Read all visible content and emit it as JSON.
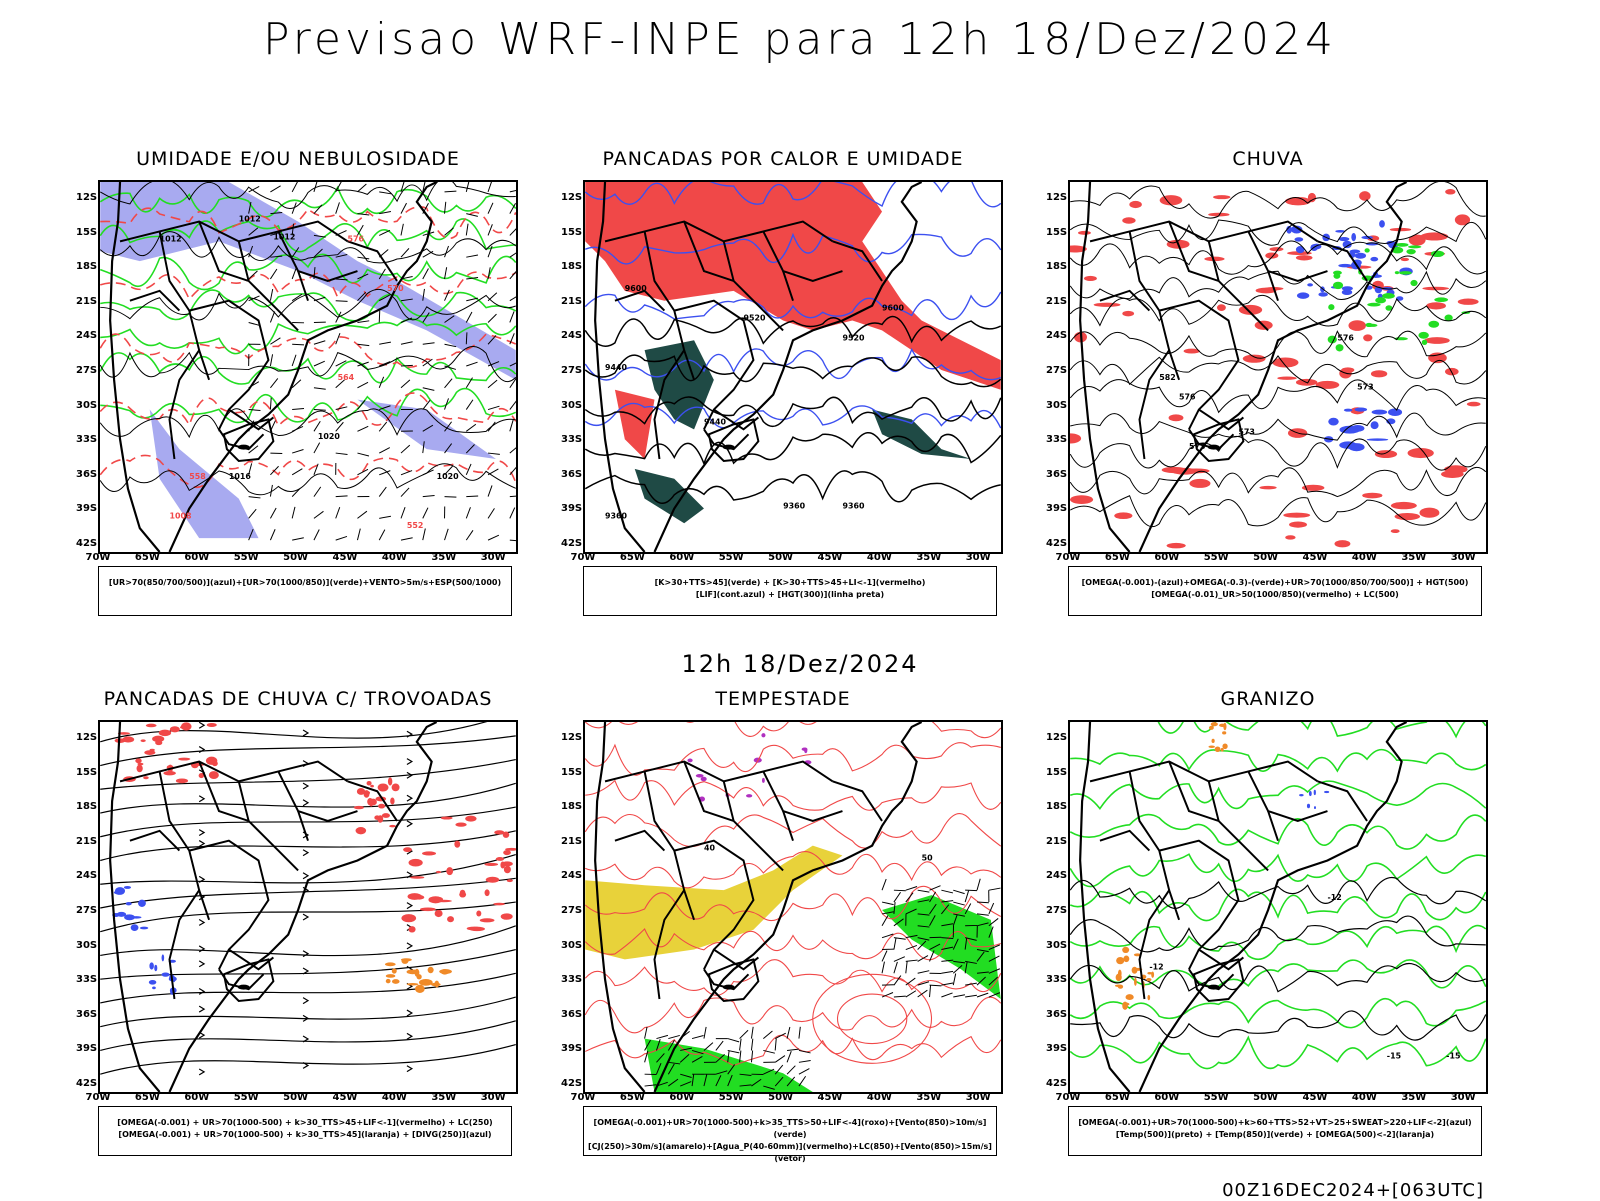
{
  "title": "Previsao WRF-INPE  para 12h 18/Dez/2024",
  "subtitle": "12h 18/Dez/2024",
  "footer": "00Z16DEC2024+[063UTC]",
  "axes": {
    "lat": [
      "12S",
      "15S",
      "18S",
      "21S",
      "24S",
      "27S",
      "30S",
      "33S",
      "36S",
      "39S",
      "42S"
    ],
    "lon": [
      "70W",
      "65W",
      "60W",
      "55W",
      "50W",
      "45W",
      "40W",
      "35W",
      "30W"
    ]
  },
  "panels": [
    {
      "title": "UMIDADE E/OU NEBULOSIDADE",
      "legend1": "[UR>70(850/700/500)](azul)+[UR>70(1000/850)](verde)+VENTO>5m/s+ESP(500/1000)",
      "legend2": "",
      "labels": [
        "1012",
        "1012",
        "1012",
        "1016",
        "1016",
        "1020",
        "1020",
        "1008",
        "576",
        "570",
        "564",
        "558",
        "552"
      ]
    },
    {
      "title": "PANCADAS POR CALOR E UMIDADE",
      "legend1": "[K>30+TTS>45](verde) + [K>30+TTS>45+LI<-1](vermelho)",
      "legend2": "[LIF](cont.azul) + [HGT(300)](linha preta)",
      "labels": [
        "9600",
        "9600",
        "9520",
        "9520",
        "9440",
        "9440",
        "9360",
        "9360",
        "9360"
      ]
    },
    {
      "title": "CHUVA",
      "legend1": "[OMEGA(-0.001)-(azul)+OMEGA(-0.3)-(verde)+UR>70(1000/850/700/500)] + HGT(500)",
      "legend2": "[OMEGA(-0.01)_UR>50(1000/850)(vermelho) + LC(500)",
      "labels": [
        "582",
        "576",
        "573",
        "573",
        "573",
        "576"
      ]
    },
    {
      "title": "PANCADAS DE CHUVA C/ TROVOADAS",
      "legend1": "[OMEGA(-0.001) + UR>70(1000-500) + k>30_TTS>45+LIF<-1](vermelho) + LC(250)",
      "legend2": "[OMEGA(-0.001) + UR>70(1000-500) + k>30_TTS>45](laranja) + [DIVG(250)](azul)",
      "labels": []
    },
    {
      "title": "TEMPESTADE",
      "legend1": "[OMEGA(-0.001)+UR>70(1000-500)+k>35_TTS>50+LIF<-4](roxo)+[Vento(850)>10m/s](verde)",
      "legend2": "[CJ(250)>30m/s](amarelo)+[Agua_P(40-60mm)](vermelho)+LC(850)+[Vento(850)>15m/s](vetor)",
      "labels": [
        "40",
        "50"
      ]
    },
    {
      "title": "GRANIZO",
      "legend1": "[OMEGA(-0.001)+UR>70(1000-500)+k>60+TTS>52+VT>25+SWEAT>220+LIF<-2](azul)",
      "legend2": "[Temp(500)](preto) + [Temp(850)](verde) + [OMEGA(500)<-2](laranja)",
      "labels": [
        "-12",
        "-12",
        "-15",
        "-15"
      ]
    }
  ],
  "colors": {
    "land_outline": "#000000",
    "blue": "#3c50f0",
    "lavender": "#a8aaf0",
    "green": "#22dd22",
    "red": "#f04848",
    "darkteal": "#1f4a45",
    "yellow": "#e8d23a",
    "orange": "#f08a28",
    "purple": "#b030c0"
  }
}
